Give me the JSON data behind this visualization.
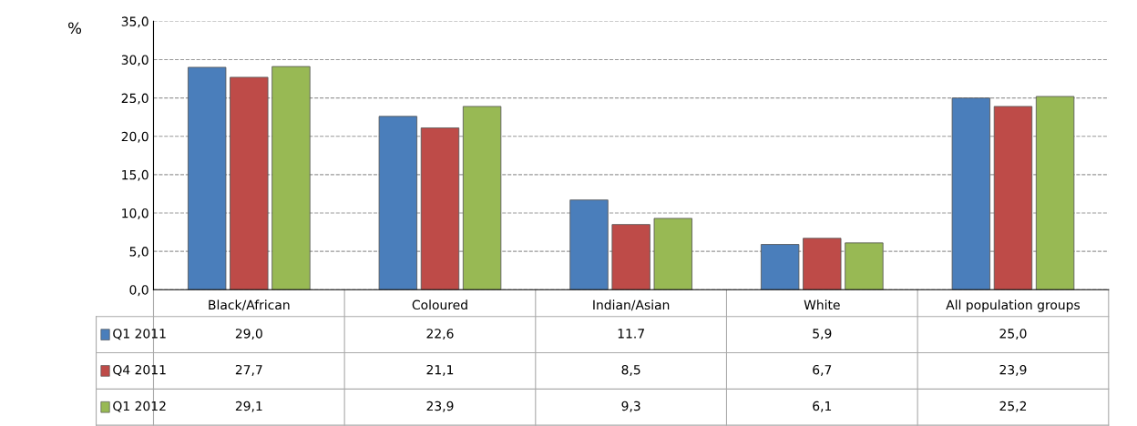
{
  "chart_data": {
    "type": "bar",
    "ylabel": "%",
    "categories": [
      "Black/African",
      "Coloured",
      "Indian/Asian",
      "White",
      "All population groups"
    ],
    "series": [
      {
        "name": "Q1 2011",
        "color": "#4a7ebb",
        "values": [
          29.0,
          22.6,
          11.7,
          5.9,
          25.0
        ],
        "value_labels": [
          "29,0",
          "22,6",
          "11.7",
          "5,9",
          "25,0"
        ]
      },
      {
        "name": "Q4 2011",
        "color": "#be4b48",
        "values": [
          27.7,
          21.1,
          8.5,
          6.7,
          23.9
        ],
        "value_labels": [
          "27,7",
          "21,1",
          "8,5",
          "6,7",
          "23,9"
        ]
      },
      {
        "name": "Q1 2012",
        "color": "#98b954",
        "values": [
          29.1,
          23.9,
          9.3,
          6.1,
          25.2
        ],
        "value_labels": [
          "29,1",
          "23,9",
          "9,3",
          "6,1",
          "25,2"
        ]
      }
    ],
    "ylim": [
      0,
      35
    ],
    "yticks": [
      {
        "value": 0,
        "label": "0,0"
      },
      {
        "value": 5,
        "label": "5,0"
      },
      {
        "value": 10,
        "label": "10,0"
      },
      {
        "value": 15,
        "label": "15,0"
      },
      {
        "value": 20,
        "label": "20,0"
      },
      {
        "value": 25,
        "label": "25,0"
      },
      {
        "value": 30,
        "label": "30,0"
      },
      {
        "value": 35,
        "label": "35,0"
      }
    ],
    "grid": "y",
    "legend": "bottom"
  }
}
